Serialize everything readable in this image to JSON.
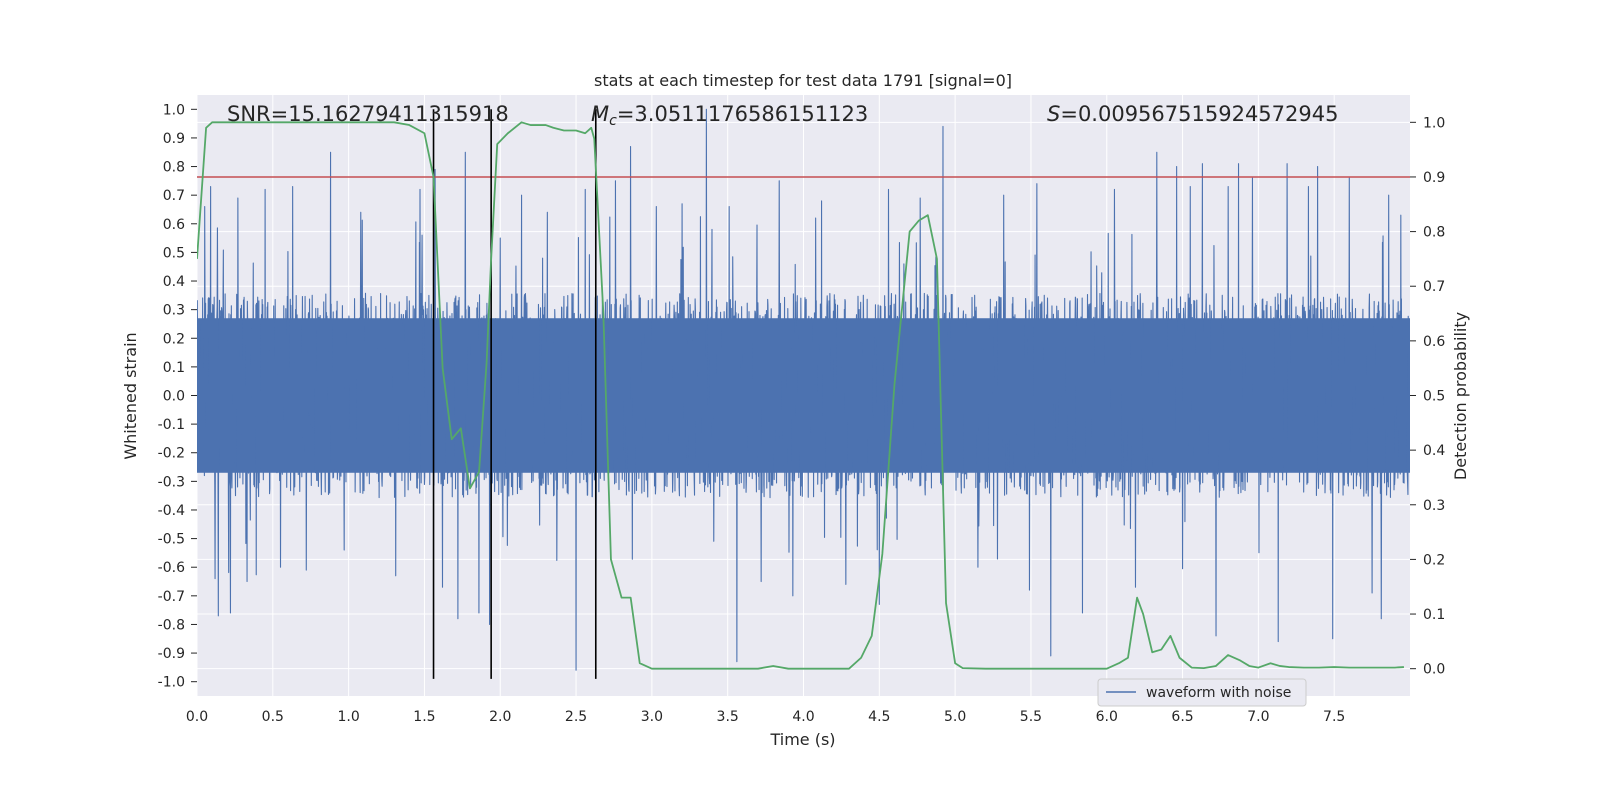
{
  "chart_data": {
    "type": "line",
    "title": "stats at each timestep for test data 1791 [signal=0]",
    "xlabel": "Time (s)",
    "ylabel_left": "Whitened strain",
    "ylabel_right": "Detection probability",
    "xlim": [
      0.0,
      8.0
    ],
    "ylim_left": [
      -1.05,
      1.05
    ],
    "ylim_right": [
      -0.05,
      1.05
    ],
    "x_ticks": [
      0.0,
      0.5,
      1.0,
      1.5,
      2.0,
      2.5,
      3.0,
      3.5,
      4.0,
      4.5,
      5.0,
      5.5,
      6.0,
      6.5,
      7.0,
      7.5
    ],
    "x_tick_labels": [
      "0.0",
      "0.5",
      "1.0",
      "1.5",
      "2.0",
      "2.5",
      "3.0",
      "3.5",
      "4.0",
      "4.5",
      "5.0",
      "5.5",
      "6.0",
      "6.5",
      "7.0",
      "7.5"
    ],
    "y_left_ticks": [
      1.0,
      0.9,
      0.8,
      0.7,
      0.6,
      0.5,
      0.4,
      0.3,
      0.2,
      0.1,
      0.0,
      -0.1,
      -0.2,
      -0.3,
      -0.4,
      -0.5,
      -0.6,
      -0.7,
      -0.8,
      -0.9,
      -1.0
    ],
    "y_left_tick_labels": [
      "1.0",
      "0.9",
      "0.8",
      "0.7",
      "0.6",
      "0.5",
      "0.4",
      "0.3",
      "0.2",
      "0.1",
      "0.0",
      "-0.1",
      "-0.2",
      "-0.3",
      "-0.4",
      "-0.5",
      "-0.6",
      "-0.7",
      "-0.8",
      "-0.9",
      "-1.0"
    ],
    "y_right_ticks": [
      1.0,
      0.9,
      0.8,
      0.7,
      0.6,
      0.5,
      0.4,
      0.3,
      0.2,
      0.1,
      0.0
    ],
    "y_right_tick_labels": [
      "1.0",
      "0.9",
      "0.8",
      "0.7",
      "0.6",
      "0.5",
      "0.4",
      "0.3",
      "0.2",
      "0.1",
      "0.0"
    ],
    "annotations": {
      "snr": "SNR=15.16279411315918",
      "mc_symbol": "M",
      "mc_sub": "c",
      "mc_value": "=3.0511176586151123",
      "s_symbol": "S",
      "s_value": "=0.009567515924572945"
    },
    "threshold": {
      "value": 0.9,
      "axis": "right",
      "color": "#c44e52"
    },
    "vertical_lines": [
      1.56,
      1.94,
      2.63
    ],
    "legend": {
      "label": "waveform with noise",
      "position": "lower-right"
    },
    "waveform": {
      "name": "waveform with noise",
      "color": "#4c72b0",
      "sample_rate": 512,
      "duration": 8.0,
      "band_amplitude": 0.42,
      "seed": 1791,
      "spikes": [
        [
          0.05,
          0.66
        ],
        [
          0.09,
          0.73
        ],
        [
          0.12,
          -0.64
        ],
        [
          0.14,
          -0.77
        ],
        [
          0.22,
          -0.76
        ],
        [
          0.27,
          0.69
        ],
        [
          0.33,
          -0.65
        ],
        [
          0.45,
          0.72
        ],
        [
          0.55,
          -0.6
        ],
        [
          0.63,
          0.73
        ],
        [
          0.72,
          -0.61
        ],
        [
          0.88,
          0.85
        ],
        [
          0.97,
          -0.54
        ],
        [
          1.08,
          0.64
        ],
        [
          1.31,
          -0.63
        ],
        [
          1.47,
          0.72
        ],
        [
          1.57,
          0.79
        ],
        [
          1.62,
          -0.67
        ],
        [
          1.72,
          -0.78
        ],
        [
          1.77,
          0.85
        ],
        [
          1.86,
          -0.76
        ],
        [
          1.93,
          -0.8
        ],
        [
          2.0,
          0.55
        ],
        [
          2.14,
          0.7
        ],
        [
          2.31,
          0.64
        ],
        [
          2.5,
          -0.96
        ],
        [
          2.56,
          0.72
        ],
        [
          2.63,
          -0.69
        ],
        [
          2.76,
          0.75
        ],
        [
          2.86,
          0.87
        ],
        [
          3.03,
          0.66
        ],
        [
          3.2,
          0.67
        ],
        [
          3.36,
          1.0
        ],
        [
          3.51,
          0.66
        ],
        [
          3.56,
          -0.93
        ],
        [
          3.72,
          -0.65
        ],
        [
          3.84,
          0.75
        ],
        [
          3.93,
          -0.7
        ],
        [
          4.12,
          0.68
        ],
        [
          4.28,
          -0.66
        ],
        [
          4.5,
          -0.73
        ],
        [
          4.56,
          0.72
        ],
        [
          4.77,
          0.69
        ],
        [
          4.92,
          0.94
        ],
        [
          5.15,
          -0.6
        ],
        [
          5.32,
          0.7
        ],
        [
          5.49,
          -0.68
        ],
        [
          5.54,
          0.74
        ],
        [
          5.63,
          -0.91
        ],
        [
          5.84,
          -0.76
        ],
        [
          6.05,
          0.72
        ],
        [
          6.19,
          -0.67
        ],
        [
          6.33,
          0.85
        ],
        [
          6.46,
          0.8
        ],
        [
          6.55,
          0.73
        ],
        [
          6.63,
          0.81
        ],
        [
          6.72,
          -0.84
        ],
        [
          6.8,
          0.73
        ],
        [
          6.87,
          0.81
        ],
        [
          6.96,
          0.76
        ],
        [
          7.13,
          -0.86
        ],
        [
          7.19,
          0.81
        ],
        [
          7.33,
          0.73
        ],
        [
          7.39,
          0.8
        ],
        [
          7.49,
          -0.85
        ],
        [
          7.6,
          0.76
        ],
        [
          7.75,
          -0.69
        ],
        [
          7.81,
          -0.78
        ],
        [
          7.86,
          0.7
        ],
        [
          7.94,
          0.63
        ]
      ]
    },
    "probability": {
      "name": "Detection probability",
      "color": "#55a868",
      "axis": "right",
      "x": [
        0.0,
        0.06,
        0.1,
        0.2,
        0.4,
        0.6,
        0.8,
        1.0,
        1.2,
        1.3,
        1.4,
        1.5,
        1.56,
        1.62,
        1.68,
        1.74,
        1.8,
        1.86,
        1.91,
        1.94,
        1.98,
        2.05,
        2.14,
        2.2,
        2.3,
        2.35,
        2.42,
        2.5,
        2.56,
        2.6,
        2.62,
        2.68,
        2.73,
        2.8,
        2.86,
        2.92,
        3.0,
        3.2,
        3.5,
        3.7,
        3.8,
        3.9,
        4.0,
        4.2,
        4.3,
        4.38,
        4.45,
        4.52,
        4.6,
        4.7,
        4.76,
        4.82,
        4.88,
        4.94,
        5.0,
        5.05,
        5.2,
        5.4,
        5.6,
        5.8,
        6.0,
        6.08,
        6.14,
        6.2,
        6.24,
        6.3,
        6.36,
        6.42,
        6.48,
        6.56,
        6.64,
        6.72,
        6.8,
        6.88,
        6.94,
        7.0,
        7.08,
        7.14,
        7.2,
        7.3,
        7.4,
        7.5,
        7.6,
        7.7,
        7.8,
        7.9,
        7.96
      ],
      "y": [
        0.75,
        0.99,
        1.0,
        1.0,
        1.0,
        1.0,
        1.0,
        1.0,
        1.0,
        1.0,
        0.995,
        0.98,
        0.9,
        0.55,
        0.42,
        0.44,
        0.33,
        0.36,
        0.56,
        0.75,
        0.96,
        0.98,
        1.0,
        0.995,
        0.995,
        0.99,
        0.985,
        0.985,
        0.98,
        0.99,
        0.97,
        0.65,
        0.2,
        0.13,
        0.13,
        0.01,
        0.0,
        0.0,
        0.0,
        0.0,
        0.005,
        0.0,
        0.0,
        0.0,
        0.0,
        0.02,
        0.06,
        0.21,
        0.52,
        0.8,
        0.82,
        0.83,
        0.75,
        0.12,
        0.01,
        0.001,
        0.0,
        0.0,
        0.0,
        0.0,
        0.0,
        0.01,
        0.02,
        0.13,
        0.1,
        0.03,
        0.035,
        0.06,
        0.02,
        0.002,
        0.001,
        0.005,
        0.025,
        0.015,
        0.005,
        0.002,
        0.01,
        0.005,
        0.003,
        0.002,
        0.002,
        0.003,
        0.002,
        0.002,
        0.002,
        0.002,
        0.003
      ]
    }
  }
}
